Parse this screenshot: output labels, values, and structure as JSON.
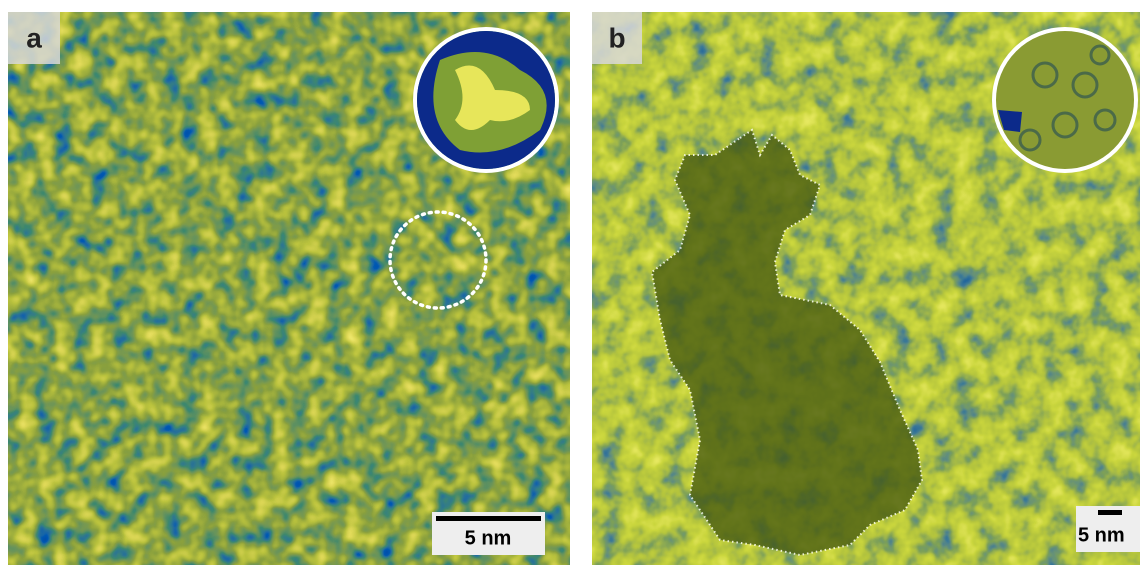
{
  "panels": [
    {
      "label": "a",
      "scale_bar": "5 nm"
    },
    {
      "label": "b",
      "scale_bar": "5 nm"
    }
  ]
}
